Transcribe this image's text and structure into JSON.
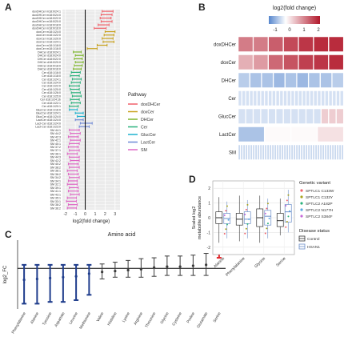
{
  "panels": {
    "a": "A",
    "b": "B",
    "c": "C",
    "d": "D"
  },
  "chart_data": [
    {
      "panel": "A",
      "type": "errorbar",
      "xlabel": "log2(fold change)",
      "ylabel": "",
      "xlim": [
        -2.3,
        3.5
      ],
      "x_ticks": [
        -2,
        -1,
        0,
        1,
        2,
        3
      ],
      "legend_title": "Pathway",
      "legend": [
        {
          "name": "doxDHCer",
          "color": "#f0616a"
        },
        {
          "name": "doxCer",
          "color": "#c8a21e"
        },
        {
          "name": "DHCer",
          "color": "#7db62c"
        },
        {
          "name": "Cer",
          "color": "#2bb27c"
        },
        {
          "name": "GlucCer",
          "color": "#1fb3cf"
        },
        {
          "name": "LactCer",
          "color": "#6f89d6"
        },
        {
          "name": "SM",
          "color": "#df67c5"
        }
      ],
      "rows": [
        {
          "label": "doxDHCer m18:0/24:1",
          "group": "doxDHCer",
          "lo": 1.7,
          "hi": 2.8
        },
        {
          "label": "doxDHCer m18:0/24:0",
          "group": "doxDHCer",
          "lo": 1.6,
          "hi": 2.7
        },
        {
          "label": "doxDHCer m18:0/22:0",
          "group": "doxDHCer",
          "lo": 1.5,
          "hi": 2.6
        },
        {
          "label": "doxDHCer m18:0/20:0",
          "group": "doxDHCer",
          "lo": 1.6,
          "hi": 2.7
        },
        {
          "label": "doxDHCer m18:0/18:0",
          "group": "doxDHCer",
          "lo": 1.3,
          "hi": 2.4
        },
        {
          "label": "doxDHCer m18:0/16:0",
          "group": "doxDHCer",
          "lo": 0.9,
          "hi": 2.1
        },
        {
          "label": "doxCer m18:1/24:0",
          "group": "doxCer",
          "lo": 2.0,
          "hi": 3.0
        },
        {
          "label": "doxCer m18:1/22:0",
          "group": "doxCer",
          "lo": 1.9,
          "hi": 2.9
        },
        {
          "label": "doxCer m18:1/20:0",
          "group": "doxCer",
          "lo": 1.7,
          "hi": 2.8
        },
        {
          "label": "doxCer m18:1/24:1",
          "group": "doxCer",
          "lo": 1.8,
          "hi": 2.9
        },
        {
          "label": "doxCer m18:1/18:0",
          "group": "doxCer",
          "lo": 1.2,
          "hi": 2.2
        },
        {
          "label": "doxCer m18:1/16:0",
          "group": "doxCer",
          "lo": 0.2,
          "hi": 1.2
        },
        {
          "label": "DHCer d18:0/24:1",
          "group": "DHCer",
          "lo": -1.2,
          "hi": -0.4
        },
        {
          "label": "DHCer d18:0/24:0",
          "group": "DHCer",
          "lo": -1.0,
          "hi": -0.2
        },
        {
          "label": "DHCer d18:0/22:0",
          "group": "DHCer",
          "lo": -1.1,
          "hi": -0.3
        },
        {
          "label": "DHCer d18:0/20:0",
          "group": "DHCer",
          "lo": -1.0,
          "hi": -0.2
        },
        {
          "label": "DHCer d18:0/18:0",
          "group": "DHCer",
          "lo": -1.1,
          "hi": -0.3
        },
        {
          "label": "DHCer d18:0/16:0",
          "group": "DHCer",
          "lo": -1.2,
          "hi": -0.4
        },
        {
          "label": "Cer d18:1/16:0",
          "group": "Cer",
          "lo": -1.4,
          "hi": -0.5
        },
        {
          "label": "Cer d18:1/18:0",
          "group": "Cer",
          "lo": -1.5,
          "hi": -0.6
        },
        {
          "label": "Cer d18:1/24:1",
          "group": "Cer",
          "lo": -1.3,
          "hi": -0.4
        },
        {
          "label": "Cer d18:1/24:0",
          "group": "Cer",
          "lo": -1.4,
          "hi": -0.5
        },
        {
          "label": "Cer d18:1/22:0",
          "group": "Cer",
          "lo": -1.6,
          "hi": -0.6
        },
        {
          "label": "Cer d18:1/20:0",
          "group": "Cer",
          "lo": -1.5,
          "hi": -0.6
        },
        {
          "label": "Cer d18:1/26:0",
          "group": "Cer",
          "lo": -1.4,
          "hi": -0.5
        },
        {
          "label": "Cer d18:1/25:0",
          "group": "Cer",
          "lo": -1.3,
          "hi": -0.4
        },
        {
          "label": "Cer d18:1/24:1b",
          "group": "Cer",
          "lo": -1.5,
          "hi": -0.6
        },
        {
          "label": "Cer d18:1/22:1",
          "group": "Cer",
          "lo": -1.4,
          "hi": -0.5
        },
        {
          "label": "Cer d18:1/20:1",
          "group": "Cer",
          "lo": -1.6,
          "hi": -0.7
        },
        {
          "label": "GlucCer d18:1/16:0",
          "group": "GlucCer",
          "lo": -1.6,
          "hi": -0.8
        },
        {
          "label": "GlucCer d18:1/24:1",
          "group": "GlucCer",
          "lo": -1.0,
          "hi": -0.2
        },
        {
          "label": "GlucCer d18:1/24:0",
          "group": "GlucCer",
          "lo": -0.8,
          "hi": 0.0
        },
        {
          "label": "LactCer d18:1/24:0",
          "group": "LactCer",
          "lo": -1.0,
          "hi": -0.2
        },
        {
          "label": "Lact-Cer d18:1/24:0",
          "group": "LactCer",
          "lo": -0.5,
          "hi": 0.7
        },
        {
          "label": "Lact-Cer d18:1/23:0",
          "group": "LactCer",
          "lo": -0.6,
          "hi": 0.4
        },
        {
          "label": "SM 44:1",
          "group": "SM",
          "lo": -1.6,
          "hi": -0.6
        },
        {
          "label": "SM 44:2",
          "group": "SM",
          "lo": -1.5,
          "hi": -0.5
        },
        {
          "label": "SM 42:3",
          "group": "SM",
          "lo": -1.7,
          "hi": -0.7
        },
        {
          "label": "SM 42:1",
          "group": "SM",
          "lo": -1.5,
          "hi": -0.5
        },
        {
          "label": "SM 40:1",
          "group": "SM",
          "lo": -1.6,
          "hi": -0.6
        },
        {
          "label": "SM 37:2",
          "group": "SM",
          "lo": -1.7,
          "hi": -0.7
        },
        {
          "label": "SM 37:1",
          "group": "SM",
          "lo": -1.6,
          "hi": -0.6
        },
        {
          "label": "SM 36:1",
          "group": "SM",
          "lo": -1.8,
          "hi": -0.8
        },
        {
          "label": "SM 44:3",
          "group": "SM",
          "lo": -1.6,
          "hi": -0.6
        },
        {
          "label": "SM 42:2",
          "group": "SM",
          "lo": -1.5,
          "hi": -0.6
        },
        {
          "label": "SM 40:2",
          "group": "SM",
          "lo": -1.7,
          "hi": -0.7
        },
        {
          "label": "SM 38:2",
          "group": "SM",
          "lo": -1.6,
          "hi": -0.6
        },
        {
          "label": "SM 38:1",
          "group": "SM",
          "lo": -1.8,
          "hi": -0.8
        },
        {
          "label": "SM 36:2",
          "group": "SM",
          "lo": -1.7,
          "hi": -0.7
        },
        {
          "label": "SM 34:2",
          "group": "SM",
          "lo": -1.6,
          "hi": -0.6
        },
        {
          "label": "SM 34:1",
          "group": "SM",
          "lo": -1.7,
          "hi": -0.8
        },
        {
          "label": "SM 32:1",
          "group": "SM",
          "lo": -1.8,
          "hi": -0.8
        },
        {
          "label": "SM 39:1",
          "group": "SM",
          "lo": -1.6,
          "hi": -0.7
        },
        {
          "label": "SM 41:1",
          "group": "SM",
          "lo": -1.7,
          "hi": -0.7
        },
        {
          "label": "SM 43:1",
          "group": "SM",
          "lo": -1.5,
          "hi": -0.6
        },
        {
          "label": "SM 35:1",
          "group": "SM",
          "lo": -1.8,
          "hi": -0.9
        },
        {
          "label": "SM 33:1",
          "group": "SM",
          "lo": -1.9,
          "hi": -0.9
        },
        {
          "label": "SM 38:2",
          "group": "SM",
          "lo": -1.7,
          "hi": -0.8
        },
        {
          "label": "SM 36:2",
          "group": "SM",
          "lo": -1.8,
          "hi": -0.9
        }
      ]
    },
    {
      "panel": "B",
      "type": "heatmap",
      "colorbar_title": "log2(fold change)",
      "colorbar_ticks": [
        "-1",
        "0",
        "1",
        "2"
      ],
      "rows": [
        {
          "label": "doxDHCer",
          "n": 7,
          "vals": [
            1.3,
            1.3,
            1.6,
            1.8,
            2.0,
            2.1,
            2.1
          ]
        },
        {
          "label": "doxCer",
          "n": 7,
          "vals": [
            0.8,
            1.0,
            1.5,
            1.7,
            1.9,
            2.0,
            2.1
          ]
        },
        {
          "label": "DHCer",
          "n": 9,
          "vals": [
            -0.5,
            -0.6,
            -0.6,
            -0.7,
            -0.6,
            -0.7,
            -0.6,
            -0.6,
            -0.5
          ]
        },
        {
          "label": "Cer",
          "n": 28,
          "vals": [
            -0.3
          ]
        },
        {
          "label": "GlucCer",
          "n": 14,
          "vals": [
            -0.3
          ],
          "last": 0.5
        },
        {
          "label": "LactCer",
          "n": 4,
          "vals": [
            -0.6,
            0.05,
            0.05,
            0.3
          ]
        },
        {
          "label": "SM",
          "n": 44,
          "vals": [
            -0.4
          ]
        }
      ]
    },
    {
      "panel": "C",
      "type": "errorbar",
      "title": "Amino acid",
      "ylabel": "log2_FC",
      "ylim": [
        -2.3,
        1.6
      ],
      "categories": [
        "Phenylalanine",
        "Alanine",
        "Tyrosine",
        "Aspartate",
        "Leucine",
        "Methionine",
        "Valine",
        "Histidine",
        "Lysine",
        "Arginine",
        "Threonine",
        "Glycine",
        "Cysteine",
        "Proline",
        "Glutamate",
        "Serine"
      ],
      "values": [
        -0.65,
        -0.6,
        -0.55,
        -0.5,
        -0.45,
        -0.3,
        -0.2,
        -0.15,
        -0.1,
        -0.05,
        0.05,
        0.1,
        0.1,
        0.15,
        0.2,
        1.25
      ],
      "err_low": [
        -2.0,
        -2.0,
        -1.9,
        -1.9,
        -1.8,
        -1.5,
        -0.6,
        -0.5,
        -0.5,
        -0.5,
        -0.45,
        -0.4,
        -0.4,
        -0.4,
        -0.4,
        0.6
      ],
      "err_high": [
        0.2,
        0.2,
        0.2,
        0.2,
        0.2,
        0.2,
        0.25,
        0.35,
        0.45,
        0.55,
        0.6,
        0.7,
        0.7,
        0.75,
        0.85,
        1.45
      ],
      "colors": {
        "neg": "#1f3d8c",
        "neutral": "#3a3a3a",
        "pos": "#e0252a"
      }
    },
    {
      "panel": "D",
      "type": "boxplot",
      "ylabel": "Scaled log2\nmetabolite abundance",
      "ylim": [
        -2.5,
        2.5
      ],
      "y_ticks": [
        -2,
        -1,
        0,
        1,
        2
      ],
      "categories": [
        "Alanine",
        "Phenylalanine",
        "Glycine",
        "Serine"
      ],
      "groups": [
        {
          "name": "Control",
          "boxes": [
            {
              "q1": -0.4,
              "med": 0.0,
              "q3": 0.4,
              "lo": -1.7,
              "hi": 1.4
            },
            {
              "q1": -0.5,
              "med": -0.1,
              "q3": 0.3,
              "lo": -1.6,
              "hi": 1.5
            },
            {
              "q1": -0.6,
              "med": 0.0,
              "q3": 0.6,
              "lo": -1.7,
              "hi": 1.5
            },
            {
              "q1": -0.6,
              "med": -0.2,
              "q3": 0.3,
              "lo": -1.2,
              "hi": 1.3
            }
          ]
        },
        {
          "name": "HSAN1",
          "boxes": [
            {
              "q1": -0.4,
              "med": -0.05,
              "q3": 0.3,
              "lo": -1.4,
              "hi": 1.1
            },
            {
              "q1": -0.4,
              "med": -0.1,
              "q3": 0.4,
              "lo": -1.4,
              "hi": 1.2
            },
            {
              "q1": -0.5,
              "med": 0.1,
              "q3": 0.5,
              "lo": -1.4,
              "hi": 1.3
            },
            {
              "q1": -0.3,
              "med": 0.4,
              "q3": 0.9,
              "lo": -1.0,
              "hi": 1.9
            }
          ]
        }
      ],
      "legend_variant_title": "Genetic variant",
      "legend_variant": [
        {
          "name": "SPTLC1 C133W",
          "color": "#f0616a"
        },
        {
          "name": "SPTLC1 C133Y",
          "color": "#a8a31f"
        },
        {
          "name": "SPTLC2 A182P",
          "color": "#2bb27c"
        },
        {
          "name": "SPTLC2 N177H",
          "color": "#5aa7e0"
        },
        {
          "name": "SPTLC2 S384F",
          "color": "#c569d8"
        }
      ],
      "legend_status_title": "Disease status",
      "legend_status": [
        {
          "name": "Control",
          "color": "#333333"
        },
        {
          "name": "HSAN1",
          "color": "#6b8ec9"
        }
      ]
    }
  ]
}
